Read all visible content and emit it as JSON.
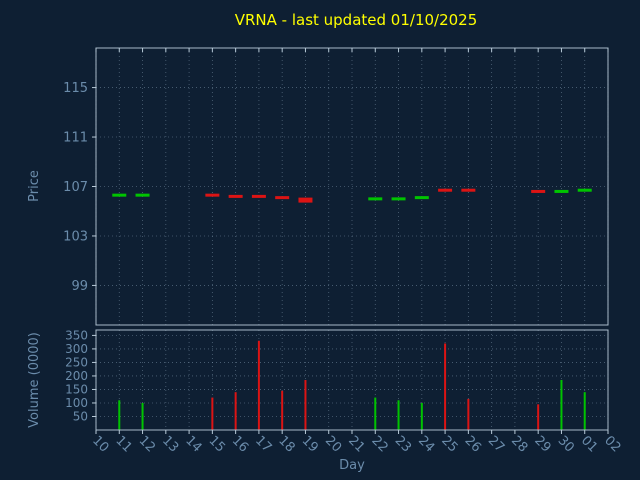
{
  "colors": {
    "background": "#0e1f33",
    "title": "#ffff00",
    "tick_label": "#6b8cab",
    "grid": "#8fa8bd",
    "frame": "#b9cbd9",
    "up": "#00c400",
    "down": "#dc1414"
  },
  "chart_data": {
    "type": "candlestick",
    "title": "VRNA - last updated 01/10/2025",
    "xlabel": "Day",
    "categories": [
      "10",
      "11",
      "12",
      "13",
      "14",
      "15",
      "16",
      "17",
      "18",
      "19",
      "20",
      "21",
      "22",
      "23",
      "24",
      "25",
      "26",
      "27",
      "28",
      "29",
      "30",
      "01",
      "02"
    ],
    "panels": [
      {
        "name": "price",
        "ylabel": "Price",
        "yticks": [
          99,
          103,
          107,
          111,
          115
        ],
        "ylim": [
          95.8,
          118.2
        ],
        "marks": [
          {
            "day": "11",
            "price": 106.3,
            "dir": "up"
          },
          {
            "day": "12",
            "price": 106.3,
            "dir": "up"
          },
          {
            "day": "15",
            "price": 106.3,
            "dir": "down"
          },
          {
            "day": "16",
            "price": 106.2,
            "dir": "down"
          },
          {
            "day": "17",
            "price": 106.2,
            "dir": "down"
          },
          {
            "day": "18",
            "price": 106.1,
            "dir": "down"
          },
          {
            "day": "19",
            "price": 105.9,
            "dir": "down",
            "lw": 5
          },
          {
            "day": "22",
            "price": 106.0,
            "dir": "up"
          },
          {
            "day": "23",
            "price": 106.0,
            "dir": "up"
          },
          {
            "day": "24",
            "price": 106.1,
            "dir": "up"
          },
          {
            "day": "25",
            "price": 106.7,
            "dir": "down"
          },
          {
            "day": "26",
            "price": 106.7,
            "dir": "down"
          },
          {
            "day": "29",
            "price": 106.6,
            "dir": "down"
          },
          {
            "day": "30",
            "price": 106.6,
            "dir": "up"
          },
          {
            "day": "01",
            "price": 106.7,
            "dir": "up"
          }
        ]
      },
      {
        "name": "volume",
        "ylabel": "Volume (0000)",
        "yticks": [
          50,
          100,
          150,
          200,
          250,
          300,
          350
        ],
        "ylim": [
          0,
          370
        ],
        "bars": [
          {
            "day": "11",
            "value": 110,
            "dir": "up"
          },
          {
            "day": "12",
            "value": 100,
            "dir": "up"
          },
          {
            "day": "15",
            "value": 120,
            "dir": "down"
          },
          {
            "day": "16",
            "value": 140,
            "dir": "down"
          },
          {
            "day": "17",
            "value": 330,
            "dir": "down"
          },
          {
            "day": "18",
            "value": 145,
            "dir": "down"
          },
          {
            "day": "19",
            "value": 185,
            "dir": "down"
          },
          {
            "day": "22",
            "value": 120,
            "dir": "up"
          },
          {
            "day": "23",
            "value": 110,
            "dir": "up"
          },
          {
            "day": "24",
            "value": 100,
            "dir": "up"
          },
          {
            "day": "25",
            "value": 320,
            "dir": "down"
          },
          {
            "day": "26",
            "value": 115,
            "dir": "down"
          },
          {
            "day": "29",
            "value": 95,
            "dir": "down"
          },
          {
            "day": "30",
            "value": 185,
            "dir": "up"
          },
          {
            "day": "01",
            "value": 140,
            "dir": "up"
          }
        ]
      }
    ]
  }
}
